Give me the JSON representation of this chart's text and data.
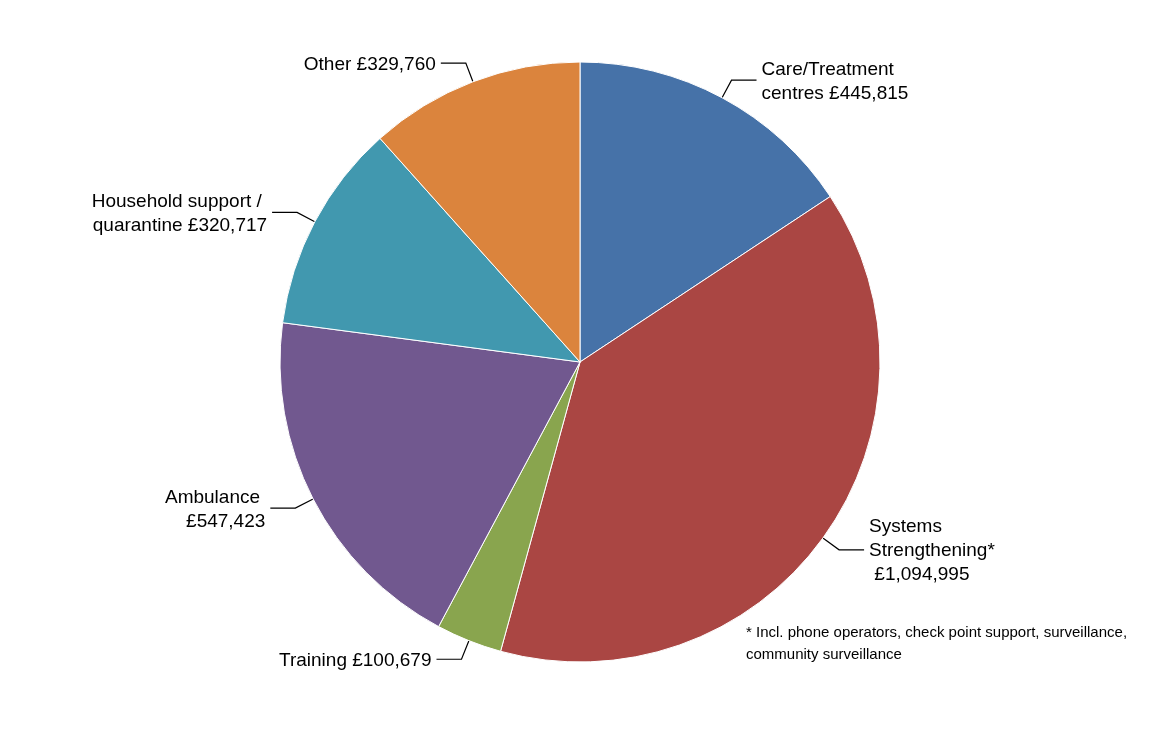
{
  "chart_data": {
    "type": "pie",
    "categories": [
      "Care/Treatment centres",
      "Systems Strengthening*",
      "Training",
      "Ambulance",
      "Household support / quarantine",
      "Other"
    ],
    "values": [
      445815,
      1094995,
      100679,
      547423,
      320717,
      329760
    ],
    "value_labels": [
      "£445,815",
      "£1,094,995",
      "£100,679",
      "£547,423",
      "£320,717",
      "£329,760"
    ],
    "colors": [
      "#4672a8",
      "#aa4643",
      "#89a54e",
      "#71588f",
      "#4198af",
      "#db843d"
    ],
    "annotations": [
      "* Incl. phone operators, check point support, surveillance, community surveillance"
    ],
    "legend": false
  }
}
